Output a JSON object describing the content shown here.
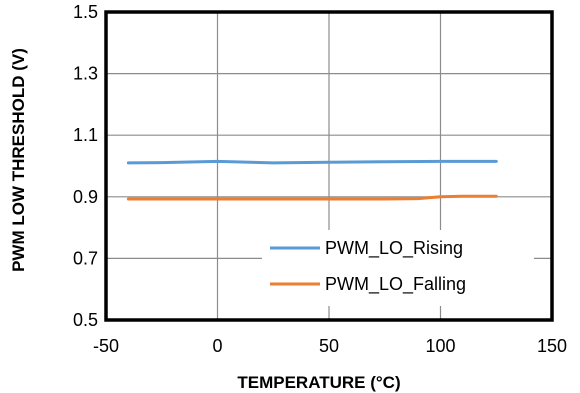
{
  "chart_data": {
    "type": "line",
    "title": "",
    "xlabel": "TEMPERATURE  (°C)",
    "ylabel": "PWM LOW THRESHOLD  (V)",
    "xlim": [
      -50,
      150
    ],
    "ylim": [
      0.5,
      1.5
    ],
    "xticks": [
      "-50",
      "0",
      "50",
      "100",
      "150"
    ],
    "yticks": [
      "0.5",
      "0.7",
      "0.9",
      "1.1",
      "1.3",
      "1.5"
    ],
    "grid": true,
    "legend_position": "lower-right",
    "series": [
      {
        "name": "PWM_LO_Rising",
        "color": "#5b9bd5",
        "x": [
          -40,
          -25,
          0,
          25,
          50,
          75,
          100,
          125
        ],
        "y": [
          1.01,
          1.011,
          1.015,
          1.01,
          1.012,
          1.014,
          1.015,
          1.015
        ]
      },
      {
        "name": "PWM_LO_Falling",
        "color": "#ed7d31",
        "x": [
          -40,
          -25,
          0,
          25,
          50,
          75,
          90,
          100,
          110,
          125
        ],
        "y": [
          0.893,
          0.893,
          0.893,
          0.893,
          0.893,
          0.893,
          0.894,
          0.9,
          0.902,
          0.902
        ]
      }
    ]
  }
}
